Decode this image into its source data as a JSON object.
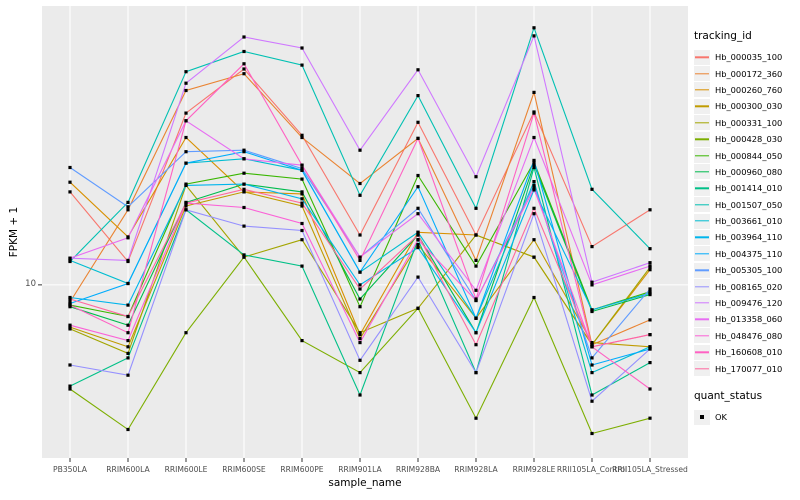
{
  "chart_data": {
    "type": "line",
    "title": "",
    "xlabel": "sample_name",
    "ylabel": "FPKM + 1",
    "y_scale": "log10",
    "y_domain": [
      2.75,
      80
    ],
    "y_major_ticks": [
      10
    ],
    "y_tick_labels": [
      "10"
    ],
    "grid": true,
    "legend_position": "right",
    "point_marker": "filled-black-square",
    "categories": [
      "PB350LA",
      "RRIM600LA",
      "RRIM600LE",
      "RRIM600SE",
      "RRIM600PE",
      "RRIM901LA",
      "RRIM928BA",
      "RRIM928LA",
      "RRIM928LE",
      "RRII105LA_Control",
      "RRII105LA_Stressed"
    ],
    "series": [
      {
        "name": "Hb_000035_100",
        "color": "#F8766D",
        "values": [
          20.0,
          11.9,
          36.0,
          50.0,
          30.5,
          14.5,
          33.6,
          14.5,
          36.3,
          13.3,
          17.5
        ]
      },
      {
        "name": "Hb_000172_360",
        "color": "#EA8331",
        "values": [
          8.8,
          17.5,
          42.6,
          48.3,
          30.0,
          21.3,
          29.8,
          12.0,
          42.0,
          6.4,
          7.7
        ]
      },
      {
        "name": "Hb_000260_760",
        "color": "#D89000",
        "values": [
          21.5,
          14.3,
          30.0,
          20.0,
          19.7,
          6.9,
          14.8,
          14.5,
          12.3,
          6.4,
          11.2
        ]
      },
      {
        "name": "Hb_000300_030",
        "color": "#C09B00",
        "values": [
          7.3,
          6.3,
          18.0,
          20.0,
          18.0,
          6.7,
          13.5,
          7.8,
          14.0,
          6.5,
          6.3
        ]
      },
      {
        "name": "Hb_000331_100",
        "color": "#A3A500",
        "values": [
          7.2,
          6.0,
          21.0,
          12.3,
          14.0,
          7.0,
          8.4,
          14.5,
          12.3,
          6.4,
          11.4
        ]
      },
      {
        "name": "Hb_000428_030",
        "color": "#7CAE00",
        "values": [
          4.6,
          3.4,
          7.0,
          12.3,
          6.6,
          5.2,
          8.4,
          3.7,
          9.1,
          3.3,
          3.7
        ]
      },
      {
        "name": "Hb_000844_050",
        "color": "#39B600",
        "values": [
          8.6,
          7.9,
          21.2,
          23.0,
          22.0,
          8.5,
          22.6,
          11.5,
          25.0,
          8.3,
          9.5
        ]
      },
      {
        "name": "Hb_000960_080",
        "color": "#00BB4E",
        "values": [
          8.5,
          7.4,
          18.5,
          21.2,
          20.0,
          9.0,
          14.5,
          7.0,
          24.5,
          8.2,
          9.3
        ]
      },
      {
        "name": "Hb_001414_010",
        "color": "#00C087",
        "values": [
          4.7,
          5.8,
          17.5,
          12.5,
          11.5,
          4.4,
          14.0,
          5.2,
          24.0,
          4.4,
          5.6
        ]
      },
      {
        "name": "Hb_001507_050",
        "color": "#00C0B2",
        "values": [
          11.9,
          18.5,
          49.0,
          57.0,
          51.5,
          19.5,
          41.0,
          17.7,
          68.0,
          20.4,
          13.1
        ]
      },
      {
        "name": "Hb_003661_010",
        "color": "#00BDD1",
        "values": [
          12.0,
          10.1,
          24.8,
          25.6,
          23.5,
          11.0,
          14.8,
          7.8,
          21.6,
          5.2,
          6.3
        ]
      },
      {
        "name": "Hb_003964_110",
        "color": "#00B5EC",
        "values": [
          9.1,
          8.6,
          21.0,
          21.2,
          19.0,
          10.0,
          13.2,
          7.0,
          20.3,
          8.3,
          9.4
        ]
      },
      {
        "name": "Hb_004375_110",
        "color": "#00ACFC",
        "values": [
          8.7,
          10.1,
          24.8,
          27.0,
          23.5,
          11.0,
          20.8,
          7.8,
          25.3,
          5.5,
          6.2
        ]
      },
      {
        "name": "Hb_005305_100",
        "color": "#619CFF",
        "values": [
          24.0,
          17.9,
          27.0,
          27.3,
          23.8,
          12.3,
          17.7,
          8.9,
          21.0,
          5.8,
          9.7
        ]
      },
      {
        "name": "Hb_008165_020",
        "color": "#9590FF",
        "values": [
          5.5,
          5.1,
          17.5,
          15.5,
          15.0,
          5.7,
          10.6,
          5.2,
          17.0,
          4.2,
          6.2
        ]
      },
      {
        "name": "Hb_009476_120",
        "color": "#CF78FF",
        "values": [
          12.2,
          12.0,
          45.0,
          63.5,
          58.5,
          27.3,
          49.7,
          22.4,
          64.0,
          10.2,
          11.8
        ]
      },
      {
        "name": "Hb_013358_060",
        "color": "#E76DF2",
        "values": [
          12.2,
          14.2,
          34.0,
          25.6,
          24.4,
          12.3,
          17.0,
          9.6,
          30.0,
          10.0,
          11.5
        ]
      },
      {
        "name": "Hb_048476_080",
        "color": "#FB61D7",
        "values": [
          7.4,
          6.6,
          18.4,
          17.8,
          15.8,
          6.5,
          14.0,
          8.9,
          20.5,
          6.3,
          6.9
        ]
      },
      {
        "name": "Hb_160608_010",
        "color": "#FF61C3",
        "values": [
          8.6,
          7.0,
          34.0,
          52.0,
          24.4,
          12.0,
          29.8,
          9.0,
          36.0,
          6.3,
          4.6
        ]
      },
      {
        "name": "Hb_170077_010",
        "color": "#FF689F",
        "values": [
          9.0,
          7.9,
          18.4,
          20.4,
          18.4,
          9.7,
          14.5,
          6.4,
          17.7,
          6.3,
          6.9
        ]
      }
    ]
  },
  "legend": {
    "tracking_title": "tracking_id",
    "quant_title": "quant_status",
    "quant_items": [
      {
        "label": "OK"
      }
    ]
  },
  "colors": {
    "panel_background": "#EBEBEB",
    "grid_line": "#FFFFFF",
    "axis_text": "#4D4D4D",
    "tick_mark": "#333333",
    "marker": "#000000",
    "legend_key_background": "#F0F0F0"
  }
}
